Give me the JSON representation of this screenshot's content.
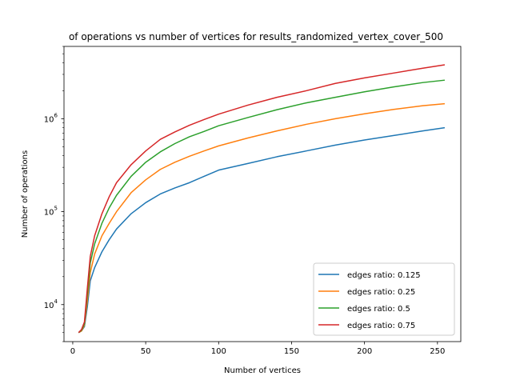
{
  "chart_data": {
    "type": "line",
    "title": "of operations vs number of vertices for results_randomized_vertex_cover_500",
    "xlabel": "Number of vertices",
    "ylabel": "Number of operations",
    "xlim": [
      -6,
      266
    ],
    "ylim": [
      4000,
      6000000
    ],
    "yscale": "log",
    "xticks": [
      0,
      50,
      100,
      150,
      200,
      250
    ],
    "yticks": [
      10000,
      100000,
      1000000
    ],
    "ytick_labels": [
      {
        "base": "10",
        "exp": "4"
      },
      {
        "base": "10",
        "exp": "5"
      },
      {
        "base": "10",
        "exp": "6"
      }
    ],
    "grid": false,
    "legend": {
      "placement": "lower-right"
    },
    "series": [
      {
        "name": "edges ratio: 0.125",
        "color": "#1f77b4",
        "x": [
          4,
          6,
          8,
          10,
          12,
          15,
          20,
          25,
          30,
          40,
          50,
          60,
          70,
          80,
          90,
          100,
          120,
          140,
          160,
          180,
          200,
          220,
          240,
          255
        ],
        "y": [
          5000,
          5200,
          5800,
          9500,
          18000,
          25000,
          37000,
          50000,
          65000,
          95000,
          125000,
          155000,
          180000,
          205000,
          240000,
          280000,
          330000,
          390000,
          450000,
          520000,
          590000,
          660000,
          740000,
          800000
        ]
      },
      {
        "name": "edges ratio: 0.25",
        "color": "#ff7f0e",
        "x": [
          4,
          6,
          8,
          10,
          12,
          15,
          20,
          25,
          30,
          40,
          50,
          60,
          70,
          80,
          90,
          100,
          120,
          140,
          160,
          180,
          200,
          220,
          240,
          255
        ],
        "y": [
          5000,
          5200,
          6000,
          11000,
          22000,
          35000,
          55000,
          75000,
          100000,
          160000,
          220000,
          285000,
          340000,
          395000,
          450000,
          510000,
          620000,
          740000,
          870000,
          1000000,
          1130000,
          1260000,
          1380000,
          1450000
        ]
      },
      {
        "name": "edges ratio: 0.5",
        "color": "#2ca02c",
        "x": [
          4,
          6,
          8,
          10,
          12,
          15,
          20,
          25,
          30,
          40,
          50,
          60,
          70,
          80,
          90,
          100,
          120,
          140,
          160,
          180,
          200,
          220,
          240,
          255
        ],
        "y": [
          5000,
          5300,
          6200,
          13000,
          28000,
          45000,
          75000,
          110000,
          150000,
          240000,
          340000,
          440000,
          540000,
          640000,
          730000,
          840000,
          1030000,
          1250000,
          1480000,
          1700000,
          1950000,
          2200000,
          2450000,
          2600000
        ]
      },
      {
        "name": "edges ratio: 0.75",
        "color": "#d62728",
        "x": [
          4,
          6,
          8,
          10,
          12,
          15,
          20,
          25,
          30,
          40,
          50,
          60,
          70,
          80,
          90,
          100,
          120,
          140,
          160,
          180,
          200,
          220,
          240,
          255
        ],
        "y": [
          5000,
          5400,
          6500,
          15000,
          33000,
          55000,
          95000,
          145000,
          205000,
          320000,
          450000,
          600000,
          720000,
          850000,
          980000,
          1120000,
          1400000,
          1700000,
          2000000,
          2400000,
          2750000,
          3100000,
          3500000,
          3800000
        ]
      }
    ]
  }
}
